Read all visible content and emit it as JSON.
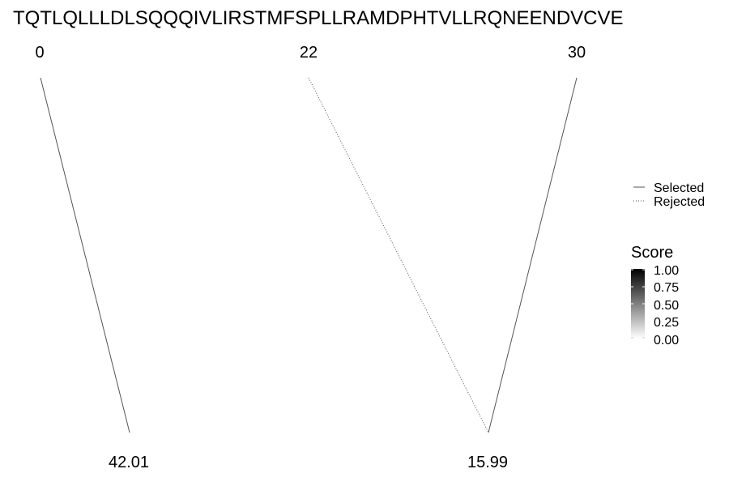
{
  "title": "TQTLQLLLDLSQQQIVLIRSTMFSPLLRAMDPHTVLLRQNEENDVCVE",
  "top_labels": [
    "0",
    "22",
    "30"
  ],
  "bottom_labels": [
    "42.01",
    "15.99"
  ],
  "links": [
    {
      "from": "0",
      "to": "42.01",
      "status": "Selected"
    },
    {
      "from": "22",
      "to": "15.99",
      "status": "Rejected"
    },
    {
      "from": "30",
      "to": "15.99",
      "status": "Selected"
    }
  ],
  "legend": {
    "line_types": [
      {
        "label": "Selected",
        "style": "solid"
      },
      {
        "label": "Rejected",
        "style": "dotted"
      }
    ],
    "score": {
      "title": "Score",
      "ticks": [
        "1.00",
        "0.75",
        "0.50",
        "0.25",
        "0.00"
      ],
      "colors": {
        "high": "#000000",
        "low": "#ffffff"
      }
    }
  },
  "colors": {
    "line": "#555555",
    "text": "#000000"
  }
}
